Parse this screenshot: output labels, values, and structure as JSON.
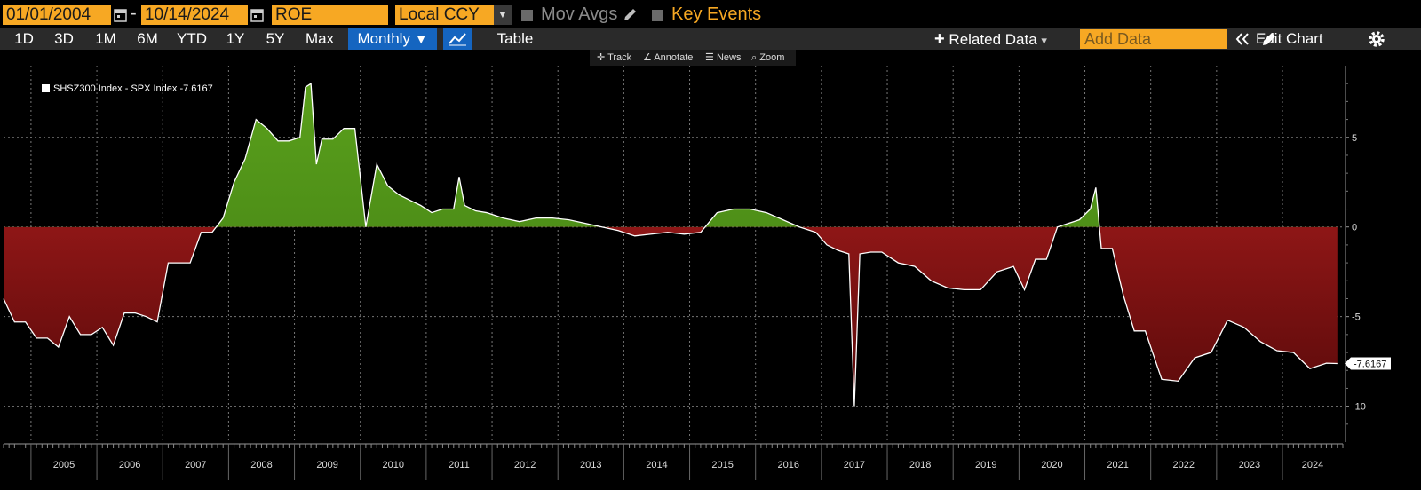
{
  "toolbar": {
    "start_date": "01/01/2004",
    "end_date": "10/14/2024",
    "field": "ROE",
    "currency": "Local CCY",
    "mov_avgs_label": "Mov Avgs",
    "key_events_label": "Key Events",
    "ranges": [
      "1D",
      "3D",
      "1M",
      "6M",
      "YTD",
      "1Y",
      "5Y",
      "Max"
    ],
    "frequency": "Monthly",
    "frequency_arrow": "▼",
    "table_label": "Table",
    "related_data_label": "Related Data",
    "related_data_arrow": "▾",
    "add_data_placeholder": "Add Data",
    "edit_chart_label": "Edit Chart",
    "chart_tools": [
      "Track",
      "Annotate",
      "News",
      "Zoom"
    ]
  },
  "colors": {
    "accent": "#f7a823",
    "active": "#1565c0",
    "positive_fill": "#4c8a18",
    "negative_fill": "#8b1a1a",
    "line": "#ffffff",
    "background": "#000000"
  },
  "chart_data": {
    "type": "area",
    "legend": "SHSZ300 Index - SPX Index -7.6167",
    "last_value_label": "-7.6167",
    "ylim": [
      -12,
      9
    ],
    "yticks": [
      5,
      0,
      -5,
      -10
    ],
    "ytick_labels": [
      "5",
      "0",
      "-5",
      "-10"
    ],
    "xlim": [
      "2004-08",
      "2024-12"
    ],
    "x_tick_labels": [
      "2005",
      "2006",
      "2007",
      "2008",
      "2009",
      "2010",
      "2011",
      "2012",
      "2013",
      "2014",
      "2015",
      "2016",
      "2017",
      "2018",
      "2019",
      "2020",
      "2021",
      "2022",
      "2023",
      "2024"
    ],
    "series": [
      {
        "x": [
          "2004-08",
          "2004-10",
          "2004-12",
          "2005-02",
          "2005-04",
          "2005-06",
          "2005-08",
          "2005-10",
          "2005-12",
          "2006-02",
          "2006-04",
          "2006-06",
          "2006-08",
          "2006-10",
          "2006-12",
          "2007-02",
          "2007-04",
          "2007-06",
          "2007-08",
          "2007-10",
          "2007-12",
          "2008-02",
          "2008-04",
          "2008-06",
          "2008-08",
          "2008-10",
          "2008-12",
          "2009-02",
          "2009-03",
          "2009-04",
          "2009-05",
          "2009-06",
          "2009-08",
          "2009-10",
          "2009-12",
          "2010-02",
          "2010-04",
          "2010-06",
          "2010-08",
          "2010-10",
          "2010-12",
          "2011-02",
          "2011-04",
          "2011-06",
          "2011-07",
          "2011-08",
          "2011-10",
          "2011-12",
          "2012-03",
          "2012-06",
          "2012-09",
          "2012-12",
          "2013-03",
          "2013-06",
          "2013-09",
          "2013-12",
          "2014-03",
          "2014-06",
          "2014-09",
          "2014-12",
          "2015-03",
          "2015-06",
          "2015-09",
          "2015-12",
          "2016-03",
          "2016-06",
          "2016-09",
          "2016-12",
          "2017-02",
          "2017-04",
          "2017-06",
          "2017-07",
          "2017-08",
          "2017-10",
          "2017-12",
          "2018-03",
          "2018-06",
          "2018-09",
          "2018-12",
          "2019-03",
          "2019-06",
          "2019-09",
          "2019-12",
          "2020-02",
          "2020-04",
          "2020-06",
          "2020-08",
          "2020-10",
          "2020-12",
          "2021-02",
          "2021-03",
          "2021-04",
          "2021-06",
          "2021-08",
          "2021-10",
          "2021-12",
          "2022-03",
          "2022-06",
          "2022-09",
          "2022-12",
          "2023-03",
          "2023-06",
          "2023-09",
          "2023-12",
          "2024-03",
          "2024-06",
          "2024-09",
          "2024-11"
        ],
        "values": [
          -4,
          -5.3,
          -5.3,
          -6.2,
          -6.2,
          -6.7,
          -5.0,
          -6.0,
          -6.0,
          -5.6,
          -6.6,
          -4.8,
          -4.8,
          -5.0,
          -5.3,
          -2.0,
          -2.0,
          -2.0,
          -0.3,
          -0.3,
          0.5,
          2.5,
          3.8,
          6.0,
          5.5,
          4.8,
          4.8,
          5.0,
          7.8,
          8.0,
          3.5,
          4.9,
          4.9,
          5.5,
          5.5,
          0.0,
          3.5,
          2.3,
          1.8,
          1.5,
          1.2,
          0.8,
          1.0,
          1.0,
          2.8,
          1.2,
          0.9,
          0.8,
          0.5,
          0.3,
          0.5,
          0.5,
          0.4,
          0.2,
          0.0,
          -0.2,
          -0.5,
          -0.4,
          -0.3,
          -0.4,
          -0.3,
          0.8,
          1.0,
          1.0,
          0.8,
          0.4,
          0.0,
          -0.3,
          -1.0,
          -1.3,
          -1.5,
          -10.0,
          -1.5,
          -1.4,
          -1.4,
          -2.0,
          -2.2,
          -3.0,
          -3.4,
          -3.5,
          -3.5,
          -2.5,
          -2.2,
          -3.5,
          -1.8,
          -1.8,
          0.0,
          0.2,
          0.4,
          1.0,
          2.2,
          -1.2,
          -1.2,
          -3.8,
          -5.8,
          -5.8,
          -8.5,
          -8.6,
          -7.3,
          -7.0,
          -5.2,
          -5.6,
          -6.4,
          -6.9,
          -7.0,
          -7.9,
          -7.6,
          -7.6167
        ]
      }
    ],
    "grid": true
  }
}
